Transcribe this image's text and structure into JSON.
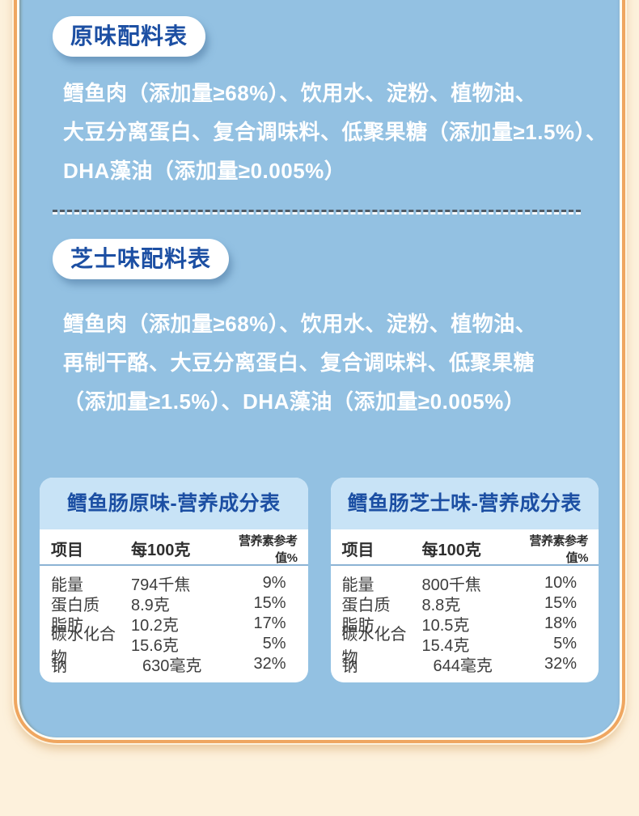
{
  "colors": {
    "page_background": "#fdf1dc",
    "panel_blue": "#93c1e2",
    "accent_blue": "#1c4fa3",
    "frame_orange": "#efa660",
    "card_header_blue": "#c8e3f6",
    "divider_dark": "#4f5b66",
    "body_text": "#3d3d3d"
  },
  "sections": {
    "original": {
      "badge": "原味配料表",
      "lines": [
        "鳕鱼肉（添加量≥68%）、饮用水、淀粉、植物油、",
        "大豆分离蛋白、复合调味料、低聚果糖（添加量≥1.5%）、",
        "DHA藻油（添加量≥0.005%）"
      ]
    },
    "cheese": {
      "badge": "芝士味配料表",
      "lines": [
        "鳕鱼肉（添加量≥68%）、饮用水、淀粉、植物油、",
        "再制干酪、大豆分离蛋白、复合调味料、低聚果糖",
        "（添加量≥1.5%）、DHA藻油（添加量≥0.005%）"
      ]
    }
  },
  "tables": [
    {
      "title": "鳕鱼肠原味-营养成分表",
      "headers": [
        "项目",
        "每100克",
        "营养素参考值%"
      ],
      "rows": [
        {
          "name": "能量",
          "value": "794千焦",
          "nrv": "9%"
        },
        {
          "name": "蛋白质",
          "value": "8.9克",
          "nrv": "15%"
        },
        {
          "name": "脂肪",
          "value": "10.2克",
          "nrv": "17%"
        },
        {
          "name": "碳水化合物",
          "value": "15.6克",
          "nrv": "5%"
        },
        {
          "name": "钠",
          "value": "630毫克",
          "nrv": "32%"
        }
      ]
    },
    {
      "title": "鳕鱼肠芝士味-营养成分表",
      "headers": [
        "项目",
        "每100克",
        "营养素参考值%"
      ],
      "rows": [
        {
          "name": "能量",
          "value": "800千焦",
          "nrv": "10%"
        },
        {
          "name": "蛋白质",
          "value": "8.8克",
          "nrv": "15%"
        },
        {
          "name": "脂肪",
          "value": "10.5克",
          "nrv": "18%"
        },
        {
          "name": "碳水化合物",
          "value": "15.4克",
          "nrv": "5%"
        },
        {
          "name": "钠",
          "value": "644毫克",
          "nrv": "32%"
        }
      ]
    }
  ]
}
